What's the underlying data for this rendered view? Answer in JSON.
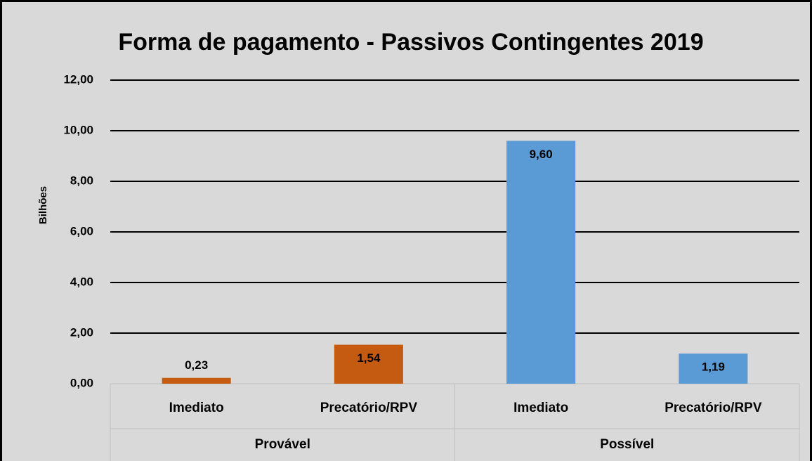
{
  "chart_data": {
    "type": "bar",
    "title": "Forma de pagamento - Passivos Contingentes 2019",
    "y_label": "Bilhões",
    "categories": [
      "Imediato",
      "Precatório/RPV",
      "Imediato",
      "Precatório/RPV"
    ],
    "groups": [
      "Provável",
      "Possível"
    ],
    "values": [
      0.23,
      1.54,
      9.6,
      1.19
    ],
    "value_labels": [
      "0,23",
      "1,54",
      "9,60",
      "1,19"
    ],
    "colors": [
      "#c55a11",
      "#c55a11",
      "#5b9bd5",
      "#5b9bd5"
    ],
    "ylim": [
      0,
      12
    ],
    "yticks": [
      {
        "value": 0,
        "label": "0,00"
      },
      {
        "value": 2,
        "label": "2,00"
      },
      {
        "value": 4,
        "label": "4,00"
      },
      {
        "value": 6,
        "label": "6,00"
      },
      {
        "value": 8,
        "label": "8,00"
      },
      {
        "value": 10,
        "label": "10,00"
      },
      {
        "value": 12,
        "label": "12,00"
      }
    ],
    "grid": true
  }
}
